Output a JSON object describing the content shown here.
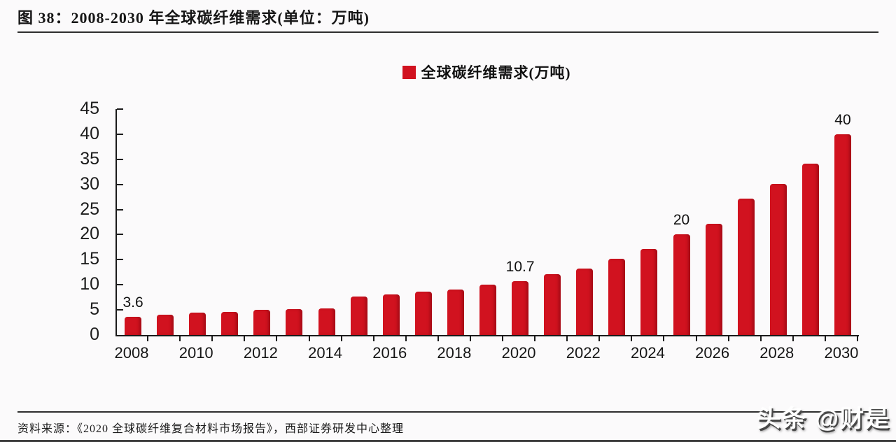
{
  "figure": {
    "title": "图 38：2008-2030 年全球碳纤维需求(单位：万吨)",
    "source_note": "资料来源：《2020 全球碳纤维复合材料市场报告》，西部证券研发中心整理",
    "watermark": "头条 @财是"
  },
  "chart_data": {
    "type": "bar",
    "title": "图 38：2008-2030 年全球碳纤维需求(单位：万吨)",
    "legend": [
      "全球碳纤维需求(万吨)"
    ],
    "legend_position": "top-center",
    "categories": [
      "2008",
      "2009",
      "2010",
      "2011",
      "2012",
      "2013",
      "2014",
      "2015",
      "2016",
      "2017",
      "2018",
      "2019",
      "2020",
      "2021",
      "2022",
      "2023",
      "2024",
      "2025",
      "2026",
      "2027",
      "2028",
      "2029",
      "2030"
    ],
    "values": [
      3.6,
      4.0,
      4.4,
      4.6,
      5.0,
      5.1,
      5.3,
      7.6,
      8.1,
      8.6,
      9.0,
      10.1,
      10.7,
      12.1,
      13.2,
      15.2,
      17.2,
      20,
      22.1,
      27.1,
      30.1,
      34.1,
      40
    ],
    "data_labels": {
      "2008": "3.6",
      "2020": "10.7",
      "2025": "20",
      "2030": "40"
    },
    "xlabel": "",
    "ylabel": "",
    "ylim": [
      0,
      45
    ],
    "ytick_step": 5,
    "xtick_label_every": 2,
    "grid": false,
    "bar_color": "#d1121f",
    "axis_color": "#1a1a1a"
  }
}
